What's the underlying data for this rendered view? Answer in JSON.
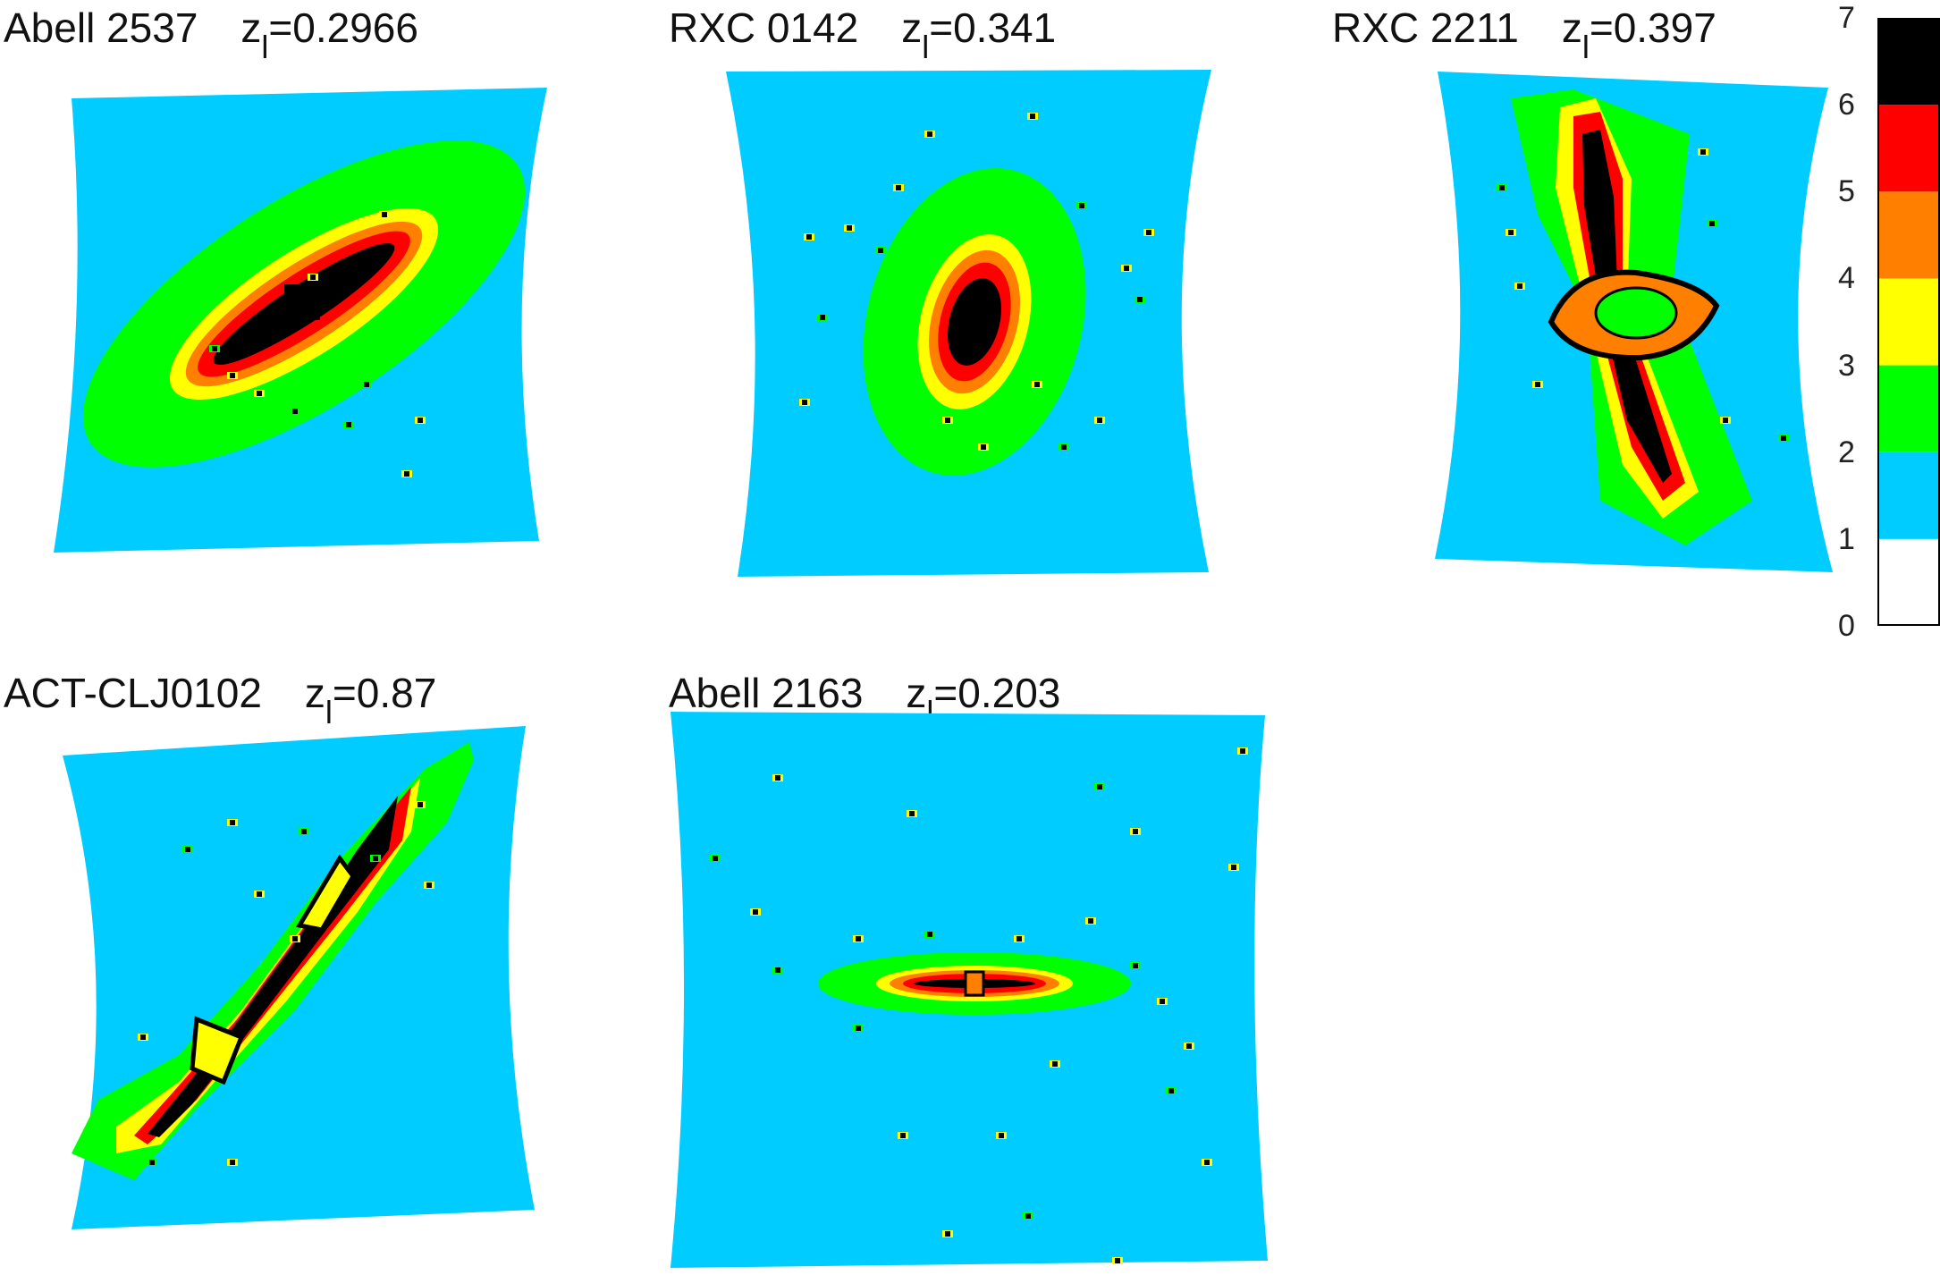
{
  "panels": [
    {
      "name": "Abell 2537",
      "z_sym": "z",
      "z_sub": "l",
      "z_val": "=0.2966"
    },
    {
      "name": "RXC 0142",
      "z_sym": "z",
      "z_sub": "l",
      "z_val": "=0.341"
    },
    {
      "name": "RXC 2211",
      "z_sym": "z",
      "z_sub": "l",
      "z_val": "=0.397"
    },
    {
      "name": "ACT-CLJ0102",
      "z_sym": "z",
      "z_sub": "l",
      "z_val": "=0.87"
    },
    {
      "name": "Abell 2163",
      "z_sym": "z",
      "z_sub": "l",
      "z_val": "=0.203"
    }
  ],
  "colorbar": {
    "ticks": [
      "0",
      "1",
      "2",
      "3",
      "4",
      "5",
      "6",
      "7"
    ],
    "levels": [
      {
        "from": 0,
        "to": 1,
        "color": "#ffffff"
      },
      {
        "from": 1,
        "to": 2,
        "color": "#00ccff"
      },
      {
        "from": 2,
        "to": 3,
        "color": "#00ff00"
      },
      {
        "from": 3,
        "to": 4,
        "color": "#ffff00"
      },
      {
        "from": 4,
        "to": 5,
        "color": "#ff8000"
      },
      {
        "from": 5,
        "to": 6,
        "color": "#ff0000"
      },
      {
        "from": 6,
        "to": 7,
        "color": "#000000"
      }
    ]
  },
  "colors": {
    "blue": "#00ccff",
    "green": "#00ff00",
    "yellow": "#ffff00",
    "orange": "#ff8000",
    "red": "#ff0000",
    "black": "#000000"
  }
}
